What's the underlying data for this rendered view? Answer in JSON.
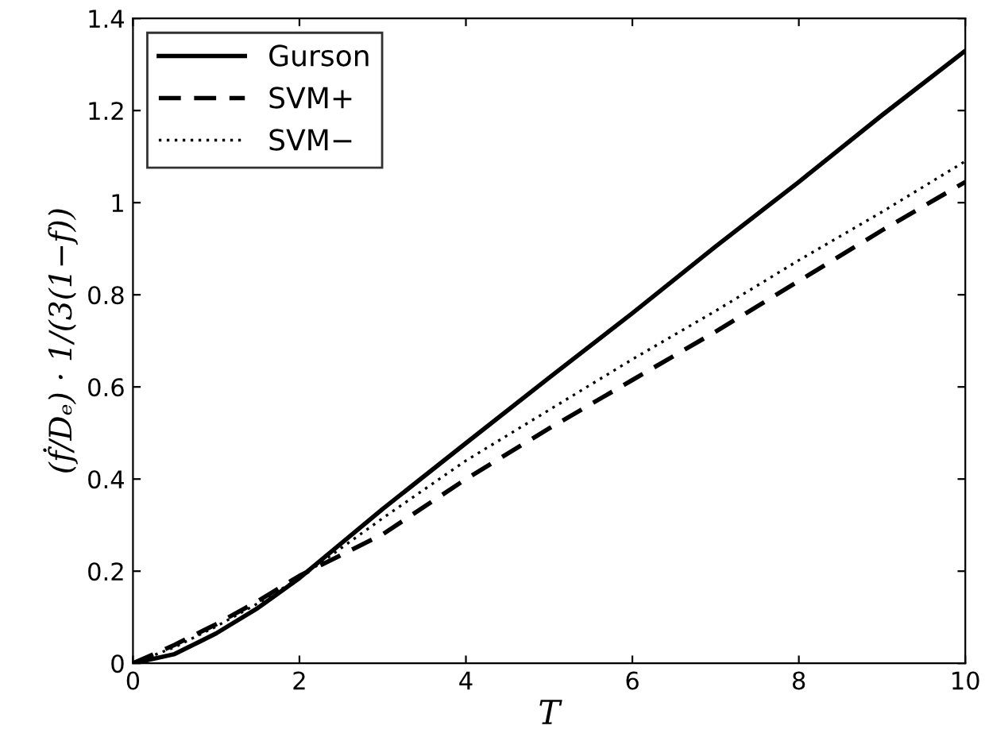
{
  "chart_data": {
    "type": "line",
    "xlabel": "T",
    "ylabel": "(ḟ/Dₑ) · 1/(3(1−f))",
    "x": [
      0,
      0.5,
      1,
      1.5,
      2,
      2.5,
      3,
      4,
      5,
      6,
      7,
      8,
      9,
      10
    ],
    "series": [
      {
        "name": "Gurson",
        "color": "#000000",
        "line_style": "solid",
        "values": [
          0,
          0.02,
          0.065,
          0.12,
          0.185,
          0.26,
          0.335,
          0.478,
          0.62,
          0.76,
          0.905,
          1.045,
          1.19,
          1.33
        ]
      },
      {
        "name": "SVM+",
        "color": "#000000",
        "line_style": "dashed",
        "values": [
          0,
          0.04,
          0.085,
          0.135,
          0.19,
          0.235,
          0.28,
          0.4,
          0.51,
          0.615,
          0.72,
          0.83,
          0.94,
          1.045
        ]
      },
      {
        "name": "SVM−",
        "color": "#000000",
        "line_style": "dotted",
        "values": [
          0,
          0.035,
          0.08,
          0.13,
          0.185,
          0.25,
          0.315,
          0.44,
          0.55,
          0.66,
          0.765,
          0.875,
          0.98,
          1.09
        ]
      }
    ],
    "xlim": [
      0,
      10
    ],
    "ylim": [
      0,
      1.4
    ],
    "xticks": [
      0,
      2,
      4,
      6,
      8,
      10
    ],
    "yticks": [
      0,
      0.2,
      0.4,
      0.6,
      0.8,
      1,
      1.2,
      1.4
    ],
    "grid": false,
    "legend": "top left",
    "marker": "none"
  }
}
